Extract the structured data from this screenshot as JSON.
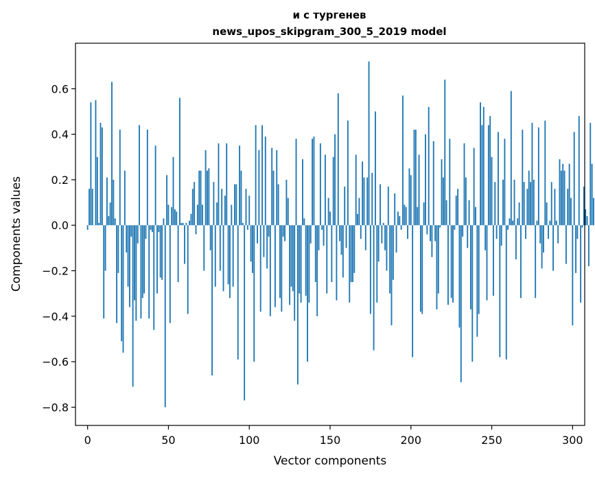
{
  "chart_data": {
    "type": "bar",
    "title_lines": [
      "и с тургенев",
      "news_upos_skipgram_300_5_2019 model"
    ],
    "xlabel": "Vector components",
    "ylabel": "Components values",
    "xlim": [
      -7.5,
      307.5
    ],
    "ylim": [
      -0.88,
      0.8
    ],
    "xticks": [
      {
        "value": 0,
        "label": "0"
      },
      {
        "value": 50,
        "label": "50"
      },
      {
        "value": 100,
        "label": "100"
      },
      {
        "value": 150,
        "label": "150"
      },
      {
        "value": 200,
        "label": "200"
      },
      {
        "value": 250,
        "label": "250"
      },
      {
        "value": 300,
        "label": "300"
      }
    ],
    "yticks": [
      {
        "value": 0.6,
        "label": "0.6"
      },
      {
        "value": 0.4,
        "label": "0.4"
      },
      {
        "value": 0.2,
        "label": "0.2"
      },
      {
        "value": 0.0,
        "label": "0.0"
      },
      {
        "value": -0.2,
        "label": "−0.2"
      },
      {
        "value": -0.4,
        "label": "−0.4"
      },
      {
        "value": -0.6,
        "label": "−0.6"
      },
      {
        "value": -0.8,
        "label": "−0.8"
      }
    ],
    "bar_color": "#1f77b4",
    "series": [
      {
        "name": "components",
        "values": [
          -0.02,
          0.16,
          0.54,
          0.16,
          0.0,
          0.55,
          0.3,
          0.01,
          0.45,
          0.43,
          -0.41,
          -0.2,
          0.21,
          0.04,
          0.1,
          0.63,
          0.2,
          0.03,
          -0.43,
          -0.21,
          0.42,
          -0.51,
          -0.56,
          0.24,
          -0.12,
          -0.27,
          -0.36,
          -0.05,
          -0.71,
          -0.33,
          -0.42,
          -0.08,
          0.44,
          -0.41,
          -0.32,
          -0.3,
          -0.06,
          0.42,
          -0.41,
          -0.02,
          -0.03,
          -0.46,
          0.35,
          -0.3,
          -0.03,
          -0.23,
          -0.24,
          0.03,
          -0.8,
          0.22,
          0.09,
          -0.43,
          0.08,
          0.3,
          0.07,
          0.06,
          -0.25,
          0.56,
          0.01,
          0.01,
          -0.17,
          0.01,
          -0.39,
          0.02,
          0.05,
          0.16,
          0.19,
          -0.04,
          0.09,
          0.24,
          0.24,
          0.09,
          -0.2,
          0.33,
          0.24,
          0.25,
          -0.11,
          -0.66,
          0.19,
          -0.27,
          0.1,
          0.36,
          -0.2,
          0.16,
          -0.29,
          0.13,
          0.36,
          -0.26,
          -0.32,
          0.09,
          -0.27,
          0.18,
          0.18,
          -0.59,
          0.35,
          0.24,
          0.01,
          -0.77,
          0.16,
          -0.02,
          0.13,
          -0.16,
          -0.21,
          -0.6,
          0.44,
          -0.08,
          0.33,
          -0.38,
          0.44,
          -0.14,
          0.39,
          -0.19,
          -0.05,
          -0.4,
          0.34,
          0.24,
          -0.36,
          0.33,
          0.18,
          -0.32,
          -0.38,
          -0.05,
          -0.07,
          0.2,
          0.12,
          -0.35,
          -0.27,
          -0.29,
          -0.42,
          0.38,
          -0.7,
          -0.3,
          -0.34,
          0.29,
          0.03,
          -0.31,
          -0.6,
          -0.34,
          -0.08,
          0.38,
          0.39,
          -0.25,
          -0.4,
          -0.11,
          0.36,
          -0.02,
          -0.09,
          0.31,
          -0.3,
          0.12,
          0.06,
          -0.25,
          0.3,
          0.4,
          -0.33,
          0.58,
          -0.07,
          -0.13,
          -0.23,
          0.17,
          -0.1,
          0.46,
          -0.34,
          -0.25,
          -0.25,
          -0.21,
          0.31,
          0.05,
          0.12,
          -0.06,
          0.28,
          0.21,
          -0.11,
          0.21,
          0.72,
          -0.39,
          0.23,
          -0.55,
          0.5,
          -0.34,
          -0.16,
          0.18,
          -0.08,
          0.01,
          -0.11,
          -0.2,
          0.17,
          -0.3,
          -0.44,
          -0.24,
          0.14,
          -0.12,
          0.06,
          0.04,
          -0.02,
          0.57,
          0.09,
          0.08,
          -0.06,
          0.25,
          0.22,
          -0.58,
          0.42,
          0.42,
          0.08,
          0.31,
          -0.38,
          -0.39,
          0.1,
          0.4,
          -0.04,
          0.52,
          -0.07,
          -0.14,
          0.37,
          -0.07,
          -0.37,
          -0.3,
          -0.01,
          0.29,
          0.21,
          0.64,
          0.11,
          -0.35,
          0.38,
          -0.32,
          -0.34,
          -0.02,
          0.13,
          0.16,
          -0.45,
          -0.69,
          -0.05,
          0.36,
          0.21,
          -0.1,
          0.11,
          -0.37,
          -0.6,
          0.34,
          0.08,
          -0.49,
          -0.39,
          0.54,
          0.44,
          0.52,
          -0.11,
          -0.33,
          0.44,
          0.48,
          0.3,
          -0.31,
          0.19,
          -0.06,
          0.41,
          -0.58,
          -0.09,
          0.2,
          0.38,
          -0.59,
          -0.02,
          0.03,
          0.59,
          0.02,
          0.2,
          -0.15,
          0.03,
          0.1,
          -0.32,
          0.42,
          0.19,
          -0.06,
          0.16,
          0.24,
          0.19,
          0.45,
          0.2,
          -0.32,
          0.02,
          0.43,
          -0.08,
          -0.19,
          -0.12,
          0.46,
          0.1,
          -0.06,
          0.02,
          0.19,
          -0.2,
          0.16,
          0.02,
          -0.08,
          0.29,
          0.24,
          0.27,
          0.24,
          -0.17,
          0.16,
          0.27,
          0.12,
          -0.44,
          0.41,
          -0.21,
          -0.06,
          0.48,
          -0.34,
          -0.01,
          0.17,
          0.07,
          0.04,
          -0.18,
          0.45,
          0.27,
          0.12
        ]
      }
    ]
  }
}
